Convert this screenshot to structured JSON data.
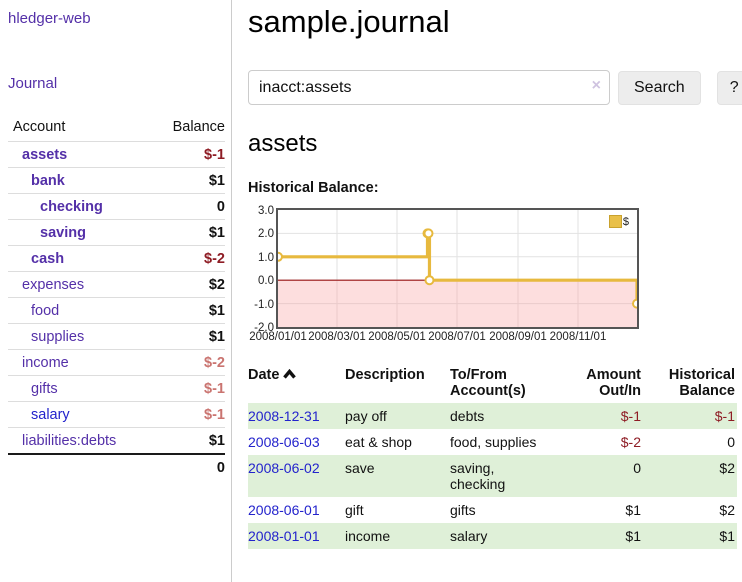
{
  "colors": {
    "link_purple": "#5430a8",
    "link_blue": "#2323cc",
    "negative_strong": "#8e1c24",
    "negative_soft": "#ca7470",
    "row_stripe_green": "#dff0d8",
    "chart_line_gold": "#e7b93e",
    "chart_negative_fill": "#fbdada",
    "chart_zero_line": "#991414"
  },
  "sidebar": {
    "brand": "hledger-web",
    "nav": {
      "journal": "Journal"
    },
    "accounts_table": {
      "headers": [
        "Account",
        "Balance"
      ],
      "rows": [
        {
          "name": "assets",
          "depth": 1,
          "strong": true,
          "balance": "$-1",
          "bal_class": "neg"
        },
        {
          "name": "bank",
          "depth": 2,
          "strong": true,
          "balance": "$1",
          "bal_class": "pos"
        },
        {
          "name": "checking",
          "depth": 3,
          "strong": true,
          "balance": "0",
          "bal_class": "pos"
        },
        {
          "name": "saving",
          "depth": 3,
          "strong": true,
          "balance": "$1",
          "bal_class": "pos"
        },
        {
          "name": "cash",
          "depth": 2,
          "strong": true,
          "balance": "$-2",
          "bal_class": "neg"
        },
        {
          "name": "expenses",
          "depth": 1,
          "strong": false,
          "balance": "$2",
          "bal_class": "pos"
        },
        {
          "name": "food",
          "depth": 2,
          "strong": false,
          "balance": "$1",
          "bal_class": "pos"
        },
        {
          "name": "supplies",
          "depth": 2,
          "strong": false,
          "balance": "$1",
          "bal_class": "pos"
        },
        {
          "name": "income",
          "depth": 1,
          "strong": false,
          "balance": "$-2",
          "bal_class": "negsoft"
        },
        {
          "name": "gifts",
          "depth": 2,
          "strong": false,
          "balance": "$-1",
          "bal_class": "negsoft"
        },
        {
          "name": "salary",
          "depth": 2,
          "strong": false,
          "balance": "$-1",
          "bal_class": "negsoft",
          "link": "blue"
        },
        {
          "name": "liabilities:debts",
          "depth": 1,
          "strong": false,
          "balance": "$1",
          "bal_class": "pos"
        }
      ],
      "total": "0"
    }
  },
  "main": {
    "title": "sample.journal",
    "search": {
      "query": "inacct:assets",
      "clear_icon": "×",
      "search_button": "Search",
      "help_button": "?"
    },
    "account_heading": "assets",
    "section_label": "Historical Balance:"
  },
  "chart_data": {
    "type": "line",
    "title": "Historical Balance",
    "legend": [
      {
        "label": "$",
        "color": "#e9c049"
      }
    ],
    "x_min": "2008-01-01",
    "x_max": "2008-12-31",
    "xticks": [
      "2008/01/01",
      "2008/03/01",
      "2008/05/01",
      "2008/07/01",
      "2008/09/01",
      "2008/11/01"
    ],
    "yticks": [
      3.0,
      2.0,
      1.0,
      0.0,
      -1.0,
      -2.0
    ],
    "ylim": [
      -2,
      3
    ],
    "grid": true,
    "legend_position": "top-right",
    "series": [
      {
        "name": "$",
        "points": [
          {
            "date": "2008-01-01",
            "value": 1
          },
          {
            "date": "2008-06-01",
            "value": 2
          },
          {
            "date": "2008-06-02",
            "value": 2
          },
          {
            "date": "2008-06-03",
            "value": 0
          },
          {
            "date": "2008-12-31",
            "value": -1
          }
        ]
      }
    ]
  },
  "register": {
    "headers": [
      "Date",
      "Description",
      "To/From Account(s)",
      "Amount Out/In",
      "Historical Balance"
    ],
    "sort_column": "Date",
    "sort_direction": "asc",
    "rows": [
      {
        "date": "2008-12-31",
        "description": "pay off",
        "accounts": "debts",
        "amount": "$-1",
        "balance": "$-1"
      },
      {
        "date": "2008-06-03",
        "description": "eat & shop",
        "accounts": "food, supplies",
        "amount": "$-2",
        "balance": "0"
      },
      {
        "date": "2008-06-02",
        "description": "save",
        "accounts": "saving, checking",
        "amount": "0",
        "balance": "$2"
      },
      {
        "date": "2008-06-01",
        "description": "gift",
        "accounts": "gifts",
        "amount": "$1",
        "balance": "$2"
      },
      {
        "date": "2008-01-01",
        "description": "income",
        "accounts": "salary",
        "amount": "$1",
        "balance": "$1"
      }
    ]
  }
}
